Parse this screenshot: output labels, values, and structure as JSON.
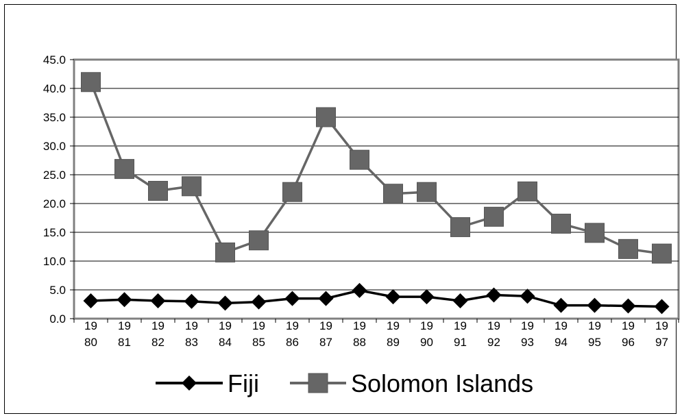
{
  "chart_data": {
    "type": "line",
    "categories": [
      "1980",
      "1981",
      "1982",
      "1983",
      "1984",
      "1985",
      "1986",
      "1987",
      "1988",
      "1989",
      "1990",
      "1991",
      "1992",
      "1993",
      "1994",
      "1995",
      "1996",
      "1997"
    ],
    "x_tick_labels": [
      [
        "19",
        "80"
      ],
      [
        "19",
        "81"
      ],
      [
        "19",
        "82"
      ],
      [
        "19",
        "83"
      ],
      [
        "19",
        "84"
      ],
      [
        "19",
        "85"
      ],
      [
        "19",
        "86"
      ],
      [
        "19",
        "87"
      ],
      [
        "19",
        "88"
      ],
      [
        "19",
        "89"
      ],
      [
        "19",
        "90"
      ],
      [
        "19",
        "91"
      ],
      [
        "19",
        "92"
      ],
      [
        "19",
        "93"
      ],
      [
        "19",
        "94"
      ],
      [
        "19",
        "95"
      ],
      [
        "19",
        "96"
      ],
      [
        "19",
        "97"
      ]
    ],
    "y_tick_labels": [
      "0.0",
      "5.0",
      "10.0",
      "15.0",
      "20.0",
      "25.0",
      "30.0",
      "35.0",
      "40.0",
      "45.0"
    ],
    "ylim": [
      0,
      45
    ],
    "grid": true,
    "legend_position": "bottom",
    "series": [
      {
        "name": "Fiji",
        "color": "#000000",
        "marker": "diamond",
        "values": [
          3.1,
          3.3,
          3.1,
          3.0,
          2.7,
          2.9,
          3.5,
          3.5,
          4.9,
          3.8,
          3.8,
          3.1,
          4.1,
          3.9,
          2.3,
          2.3,
          2.2,
          2.1
        ]
      },
      {
        "name": "Solomon Islands",
        "color": "#666666",
        "marker": "square",
        "values": [
          41.1,
          26.0,
          22.2,
          23.0,
          11.5,
          13.6,
          22.0,
          35.0,
          27.6,
          21.7,
          22.0,
          15.9,
          17.7,
          22.1,
          16.5,
          14.9,
          12.1,
          11.3
        ]
      }
    ]
  }
}
